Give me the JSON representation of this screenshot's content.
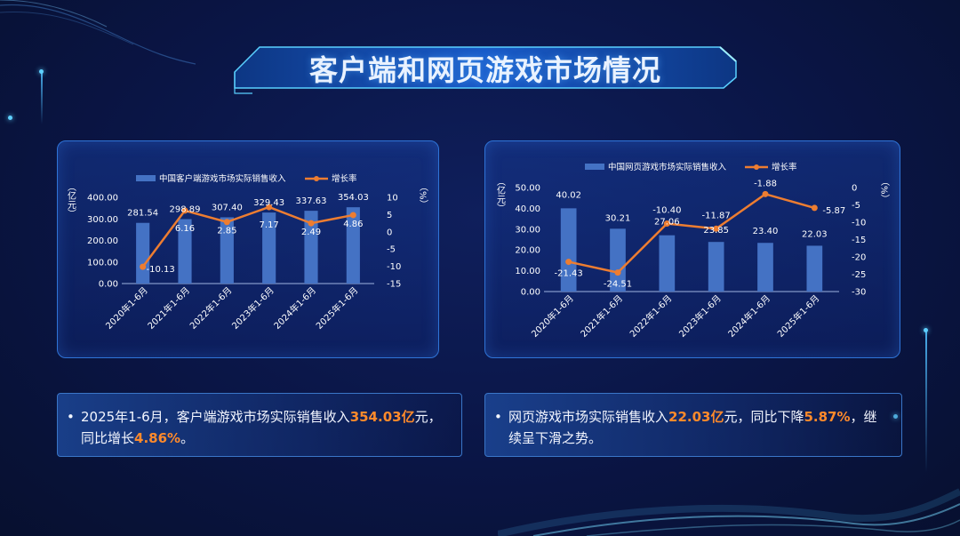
{
  "title": "客户端和网页游戏市场情况",
  "colors": {
    "bar": "#4472c4",
    "line": "#ed7d31",
    "accent": "#ff8a2b",
    "panel_border": "#2f74d8"
  },
  "chart_data": [
    {
      "type": "bar",
      "categories": [
        "2020年1-6月",
        "2021年1-6月",
        "2022年1-6月",
        "2023年1-6月",
        "2024年1-6月",
        "2025年1-6月"
      ],
      "series": [
        {
          "name": "中国客户端游戏市场实际销售收入",
          "type": "bar",
          "axis": "left",
          "values": [
            281.54,
            298.89,
            307.4,
            329.43,
            337.63,
            354.03
          ],
          "labels": [
            "281.54",
            "298.89",
            "307.40",
            "329.43",
            "337.63",
            "354.03"
          ]
        },
        {
          "name": "增长率",
          "type": "line",
          "axis": "right",
          "values": [
            -10.13,
            6.16,
            2.85,
            7.17,
            2.49,
            4.86
          ],
          "labels": [
            "-10.13",
            "6.16",
            "2.85",
            "7.17",
            "2.49",
            "4.86"
          ]
        }
      ],
      "y_left": {
        "label": "（亿元）",
        "min": 0,
        "max": 400,
        "ticks": [
          "400.00",
          "300.00",
          "200.00",
          "100.00",
          "0.00"
        ]
      },
      "y_right": {
        "label": "（%）",
        "min": -15,
        "max": 10,
        "ticks": [
          "10",
          "5",
          "0",
          "-5",
          "-10",
          "-15"
        ]
      },
      "legend_position": "top"
    },
    {
      "type": "bar",
      "categories": [
        "2020年1-6月",
        "2021年1-6月",
        "2022年1-6月",
        "2023年1-6月",
        "2024年1-6月",
        "2025年1-6月"
      ],
      "series": [
        {
          "name": "中国网页游戏市场实际销售收入",
          "type": "bar",
          "axis": "left",
          "values": [
            40.02,
            30.21,
            27.06,
            23.85,
            23.4,
            22.03
          ],
          "labels": [
            "40.02",
            "30.21",
            "27.06",
            "23.85",
            "23.40",
            "22.03"
          ]
        },
        {
          "name": "增长率",
          "type": "line",
          "axis": "right",
          "values": [
            -21.43,
            -24.51,
            -10.4,
            -11.87,
            -1.88,
            -5.87
          ],
          "labels": [
            "-21.43",
            "-24.51",
            "-10.40",
            "-11.87",
            "-1.88",
            "-5.87"
          ]
        }
      ],
      "y_left": {
        "label": "（亿元）",
        "min": 0,
        "max": 50,
        "ticks": [
          "50.00",
          "40.00",
          "30.00",
          "20.00",
          "10.00",
          "0.00"
        ]
      },
      "y_right": {
        "label": "（%）",
        "min": -30,
        "max": 0,
        "ticks": [
          "0",
          "-5",
          "-10",
          "-15",
          "-20",
          "-25",
          "-30"
        ]
      },
      "legend_position": "top"
    }
  ],
  "notes": {
    "left": {
      "bullet": "•",
      "part1": "2025年1-6月，客户端游戏市场实际销售收入",
      "hl1": "354.03亿",
      "part2": "元，同比增长",
      "hl2": "4.86%",
      "part3": "。"
    },
    "right": {
      "bullet": "•",
      "part1": "网页游戏市场实际销售收入",
      "hl1": "22.03亿",
      "part2": "元，同比下降",
      "hl2": "5.87%",
      "part3": "，继续呈下滑之势。"
    }
  }
}
